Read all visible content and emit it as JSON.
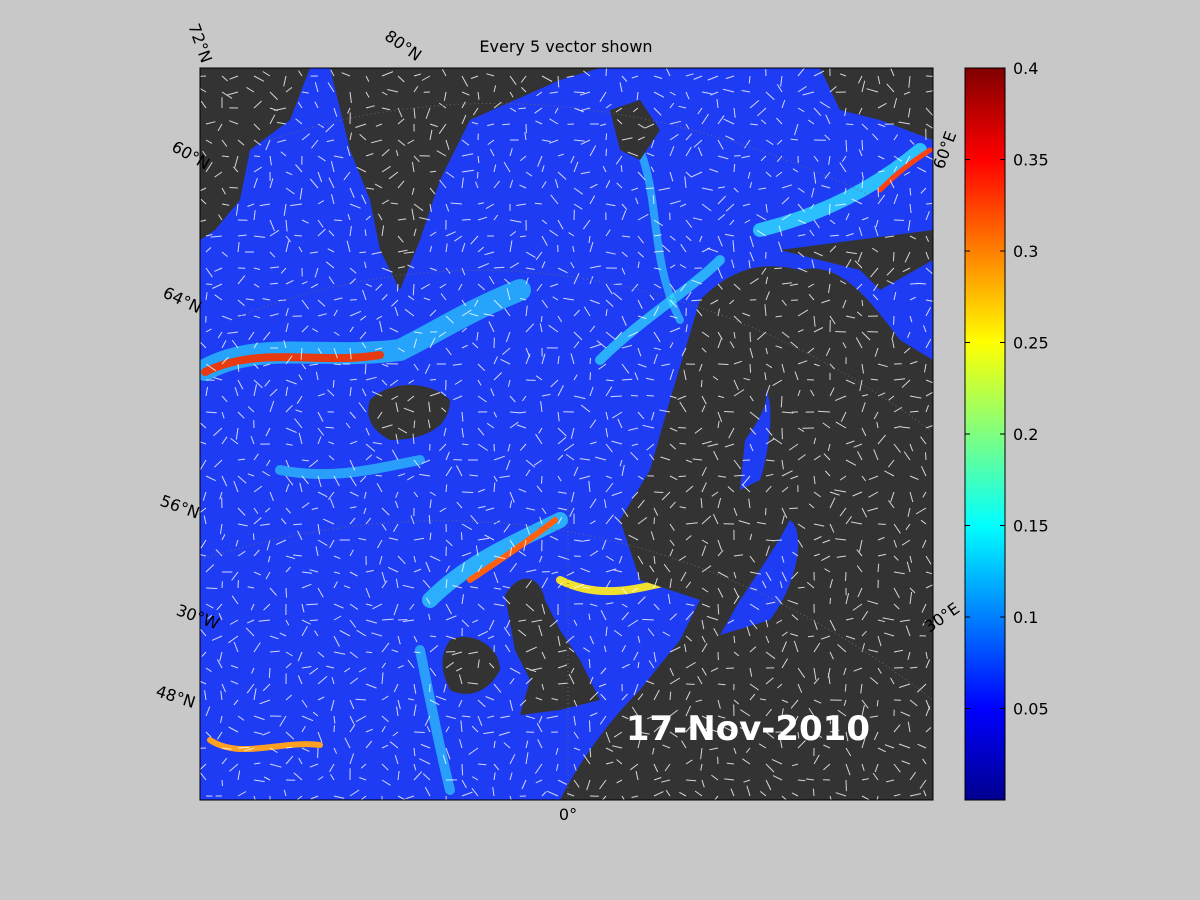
{
  "title": "Every 5 vector shown",
  "date_label": "17-Nov-2010",
  "graticule_labels": [
    "72°N",
    "80°N",
    "60°N",
    "64°N",
    "56°N",
    "30°W",
    "48°N",
    "0°",
    "60°E",
    "30°E"
  ],
  "colorbar": {
    "lim": [
      0,
      0.4
    ],
    "ticks": [
      0.05,
      0.1,
      0.15,
      0.2,
      0.25,
      0.3,
      0.35,
      0.4
    ]
  }
}
